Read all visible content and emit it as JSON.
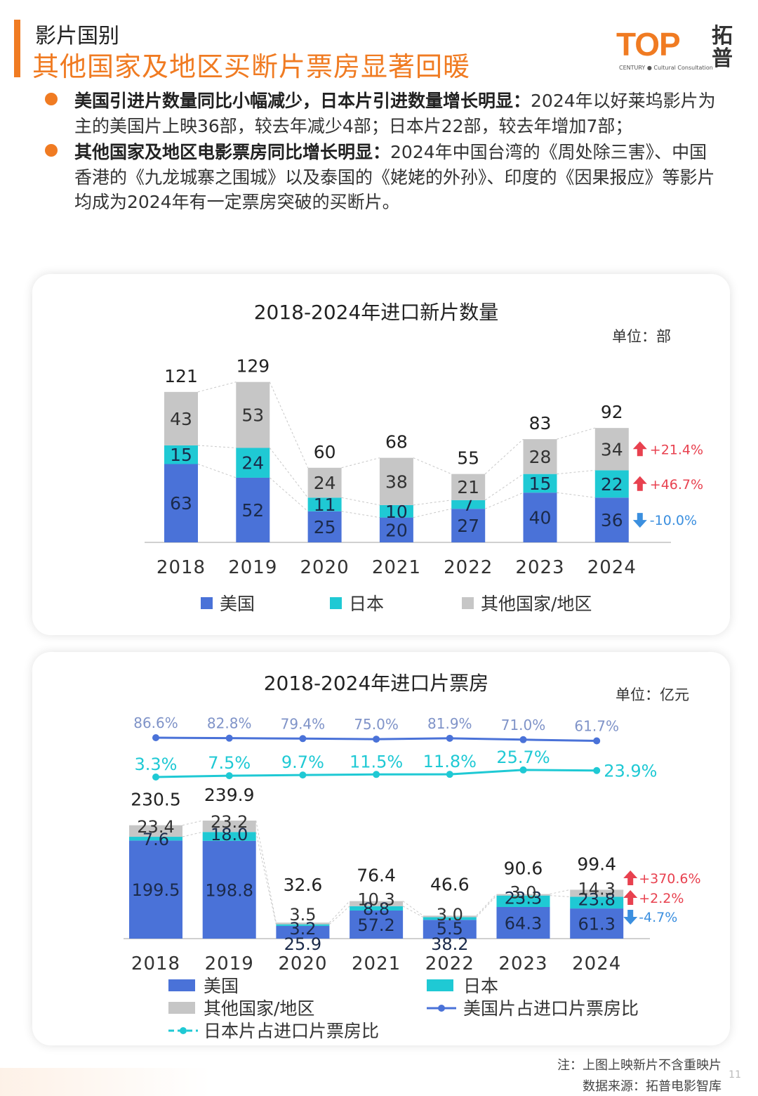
{
  "header": {
    "section_label": "影片国别",
    "headline": "其他国家及地区买断片票房显著回暖",
    "logo_text": "TOP",
    "logo_sub": "CENTURY ● Cultural Consultation",
    "logo_cn": "拓普"
  },
  "bullets": [
    {
      "lead": "美国引进片数量同比小幅减少，日本片引进数量增长明显：",
      "body": "2024年以好莱坞影片为主的美国片上映36部，较去年减少4部；日本片22部，较去年增加7部；"
    },
    {
      "lead": "其他国家及地区电影票房同比增长明显：",
      "body": "2024年中国台湾的《周处除三害》、中国香港的《九龙城寨之围城》以及泰国的《姥姥的外孙》、印度的《因果报应》等影片均成为2024年有一定票房突破的买断片。"
    }
  ],
  "colors": {
    "accent": "#f07b22",
    "usa": "#4a72d8",
    "japan": "#1fc9d4",
    "other": "#c6c6c6",
    "up": "#e8414f",
    "down": "#3b8fdf",
    "usa_line": "#4a72d8",
    "japan_line": "#1fc9d4"
  },
  "chart_data": [
    {
      "type": "bar",
      "stacked": true,
      "title": "2018-2024年进口新片数量",
      "unit": "单位：部",
      "categories": [
        "2018",
        "2019",
        "2020",
        "2021",
        "2022",
        "2023",
        "2024"
      ],
      "series": [
        {
          "name": "美国",
          "values": [
            63,
            52,
            25,
            20,
            27,
            40,
            36
          ],
          "labels": [
            "63",
            "52",
            "25",
            "20",
            "27",
            "40",
            "36"
          ]
        },
        {
          "name": "日本",
          "values": [
            15,
            24,
            11,
            10,
            7,
            15,
            22
          ],
          "labels": [
            "15",
            "24",
            "11",
            "10",
            "7",
            "15",
            "22"
          ]
        },
        {
          "name": "其他国家/地区",
          "values": [
            43,
            53,
            24,
            38,
            21,
            28,
            34
          ],
          "labels": [
            "43",
            "53",
            "24",
            "38",
            "21",
            "28",
            "34"
          ]
        }
      ],
      "totals": [
        "121",
        "129",
        "60",
        "68",
        "55",
        "83",
        "92"
      ],
      "ylim": [
        0,
        129
      ],
      "yoy": [
        {
          "series": "其他国家/地区",
          "text": "+21.4%",
          "dir": "up"
        },
        {
          "series": "日本",
          "text": "+46.7%",
          "dir": "up"
        },
        {
          "series": "美国",
          "text": "-10.0%",
          "dir": "down"
        }
      ],
      "legend": [
        "美国",
        "日本",
        "其他国家/地区"
      ]
    },
    {
      "type": "bar",
      "stacked": true,
      "title": "2018-2024年进口片票房",
      "unit": "单位：亿元",
      "categories": [
        "2018",
        "2019",
        "2020",
        "2021",
        "2022",
        "2023",
        "2024"
      ],
      "series": [
        {
          "name": "美国",
          "values": [
            199.5,
            198.8,
            25.9,
            57.2,
            38.2,
            64.3,
            61.3
          ],
          "labels": [
            "199.5",
            "198.8",
            "25.9",
            "57.2",
            "38.2",
            "64.3",
            "61.3"
          ]
        },
        {
          "name": "日本",
          "values": [
            7.6,
            18.0,
            3.2,
            8.8,
            5.5,
            23.3,
            23.8
          ],
          "labels": [
            "7.6",
            "18.0",
            "3.2",
            "8.8",
            "5.5",
            "23.3",
            "23.8"
          ]
        },
        {
          "name": "其他国家/地区",
          "values": [
            23.4,
            23.2,
            3.5,
            10.3,
            3.0,
            3.0,
            14.3
          ],
          "labels": [
            "23.4",
            "23.2",
            "3.5",
            "10.3",
            "3.0",
            "3.0",
            "14.3"
          ]
        }
      ],
      "totals": [
        "230.5",
        "239.9",
        "32.6",
        "76.4",
        "46.6",
        "90.6",
        "99.4"
      ],
      "ylim": [
        0,
        240
      ],
      "lines": [
        {
          "name": "美国片占进口片票房比",
          "values": [
            86.6,
            82.8,
            79.4,
            75.0,
            81.9,
            71.0,
            61.7
          ],
          "labels": [
            "86.6%",
            "82.8%",
            "79.4%",
            "75.0%",
            "81.9%",
            "71.0%",
            "61.7%"
          ]
        },
        {
          "name": "日本片占进口片票房比",
          "values": [
            3.3,
            7.5,
            9.7,
            11.5,
            11.8,
            25.7,
            23.9
          ],
          "labels": [
            "3.3%",
            "7.5%",
            "9.7%",
            "11.5%",
            "11.8%",
            "25.7%",
            "23.9%"
          ]
        }
      ],
      "yoy": [
        {
          "series": "其他国家/地区",
          "text": "+370.6%",
          "dir": "up"
        },
        {
          "series": "日本",
          "text": "+2.2%",
          "dir": "up"
        },
        {
          "series": "美国",
          "text": "-4.7%",
          "dir": "down"
        }
      ],
      "legend": [
        "美国",
        "日本",
        "其他国家/地区",
        "美国片占进口片票房比",
        "日本片占进口片票房比"
      ]
    }
  ],
  "footnotes": {
    "note": "注：上图上映新片不含重映片",
    "source": "数据来源：拓普电影智库",
    "page": "11"
  }
}
